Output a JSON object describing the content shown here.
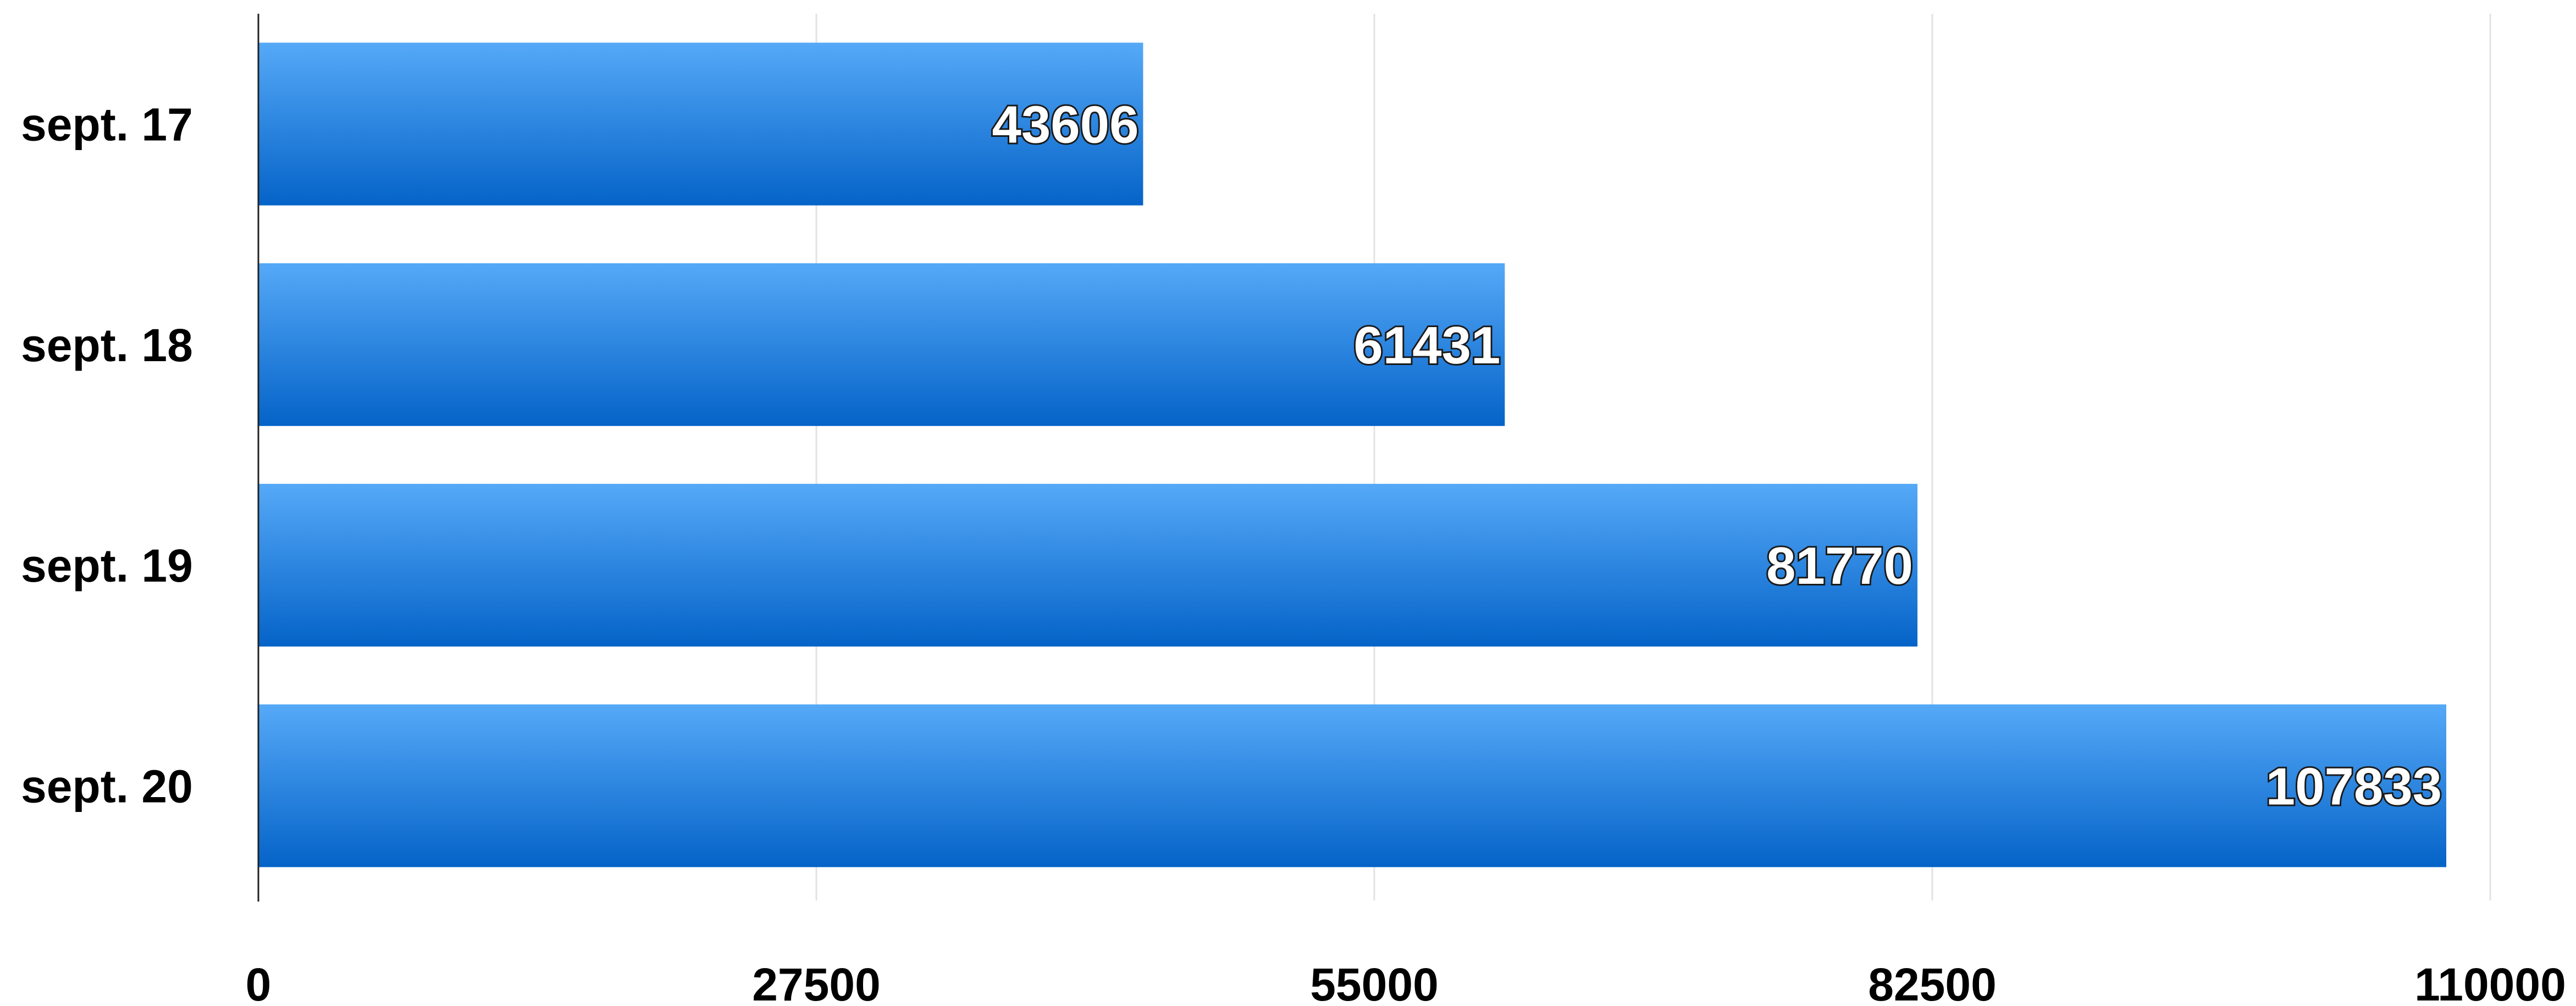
{
  "chart_data": {
    "type": "bar",
    "orientation": "horizontal",
    "categories": [
      "sept. 17",
      "sept. 18",
      "sept. 19",
      "sept. 20"
    ],
    "values": [
      43606,
      61431,
      81770,
      107833
    ],
    "xlim": [
      0,
      110000
    ],
    "xticks": [
      0,
      27500,
      55000,
      82500,
      110000
    ],
    "grid": true,
    "data_labels": true,
    "colors": {
      "bar_top": "#55a9f7",
      "bar_bottom": "#0563c8",
      "grid": "#e3e3e3",
      "axis": "#222222"
    }
  }
}
